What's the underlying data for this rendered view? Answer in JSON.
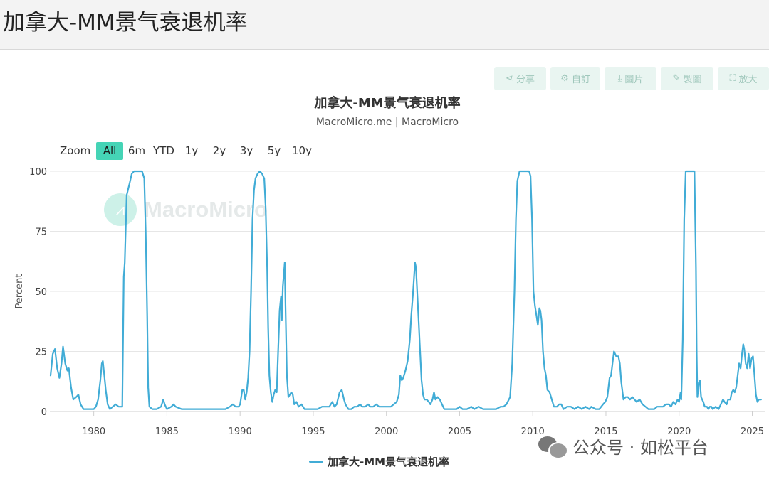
{
  "page": {
    "title": "加拿大-MM景气衰退机率"
  },
  "toolbar": {
    "buttons": [
      {
        "label": "分享",
        "icon": "share-icon",
        "glyph": "⋖"
      },
      {
        "label": "自訂",
        "icon": "gear-icon",
        "glyph": "⚙"
      },
      {
        "label": "圖片",
        "icon": "download-icon",
        "glyph": "⤓"
      },
      {
        "label": "製圖",
        "icon": "pencil-icon",
        "glyph": "✎"
      },
      {
        "label": "放大",
        "icon": "expand-icon",
        "glyph": "⛶"
      }
    ]
  },
  "zoom": {
    "label": "Zoom",
    "options": [
      "All",
      "6m",
      "YTD",
      "1y",
      "2y",
      "3y",
      "5y",
      "10y"
    ],
    "selected": "All"
  },
  "watermark": {
    "text": "MacroMicro"
  },
  "wechat": {
    "text": "公众号 · 如松平台"
  },
  "colors": {
    "series": "#41acd6",
    "accent": "#45d4b6",
    "grid": "#e6e6e6"
  },
  "chart_data": {
    "type": "line",
    "title": "加拿大-MM景气衰退机率",
    "subtitle": "MacroMicro.me | MacroMicro",
    "xlabel": "",
    "ylabel": "Percent",
    "xlim": [
      1977.0,
      2025.9
    ],
    "ylim": [
      0,
      100
    ],
    "yticks": [
      0,
      25,
      50,
      75,
      100
    ],
    "xticks": [
      1980,
      1985,
      1990,
      1995,
      2000,
      2005,
      2010,
      2015,
      2020,
      2025
    ],
    "grid": true,
    "legend_position": "bottom",
    "series": [
      {
        "name": "加拿大-MM景气衰退机率",
        "color": "#41acd6",
        "points": [
          [
            1977.05,
            15
          ],
          [
            1977.2,
            24
          ],
          [
            1977.35,
            26
          ],
          [
            1977.5,
            18
          ],
          [
            1977.65,
            14
          ],
          [
            1977.8,
            20
          ],
          [
            1977.9,
            27
          ],
          [
            1978.05,
            20
          ],
          [
            1978.2,
            17
          ],
          [
            1978.3,
            18
          ],
          [
            1978.45,
            10
          ],
          [
            1978.6,
            5
          ],
          [
            1978.8,
            6
          ],
          [
            1978.95,
            7
          ],
          [
            1979.1,
            3
          ],
          [
            1979.3,
            1
          ],
          [
            1979.7,
            1
          ],
          [
            1980.0,
            1
          ],
          [
            1980.15,
            2
          ],
          [
            1980.3,
            5
          ],
          [
            1980.45,
            13
          ],
          [
            1980.55,
            20
          ],
          [
            1980.62,
            21
          ],
          [
            1980.72,
            15
          ],
          [
            1980.82,
            9
          ],
          [
            1980.95,
            3
          ],
          [
            1981.1,
            1
          ],
          [
            1981.3,
            2
          ],
          [
            1981.5,
            3
          ],
          [
            1981.7,
            2
          ],
          [
            1981.85,
            2
          ],
          [
            1981.95,
            2
          ],
          [
            1982.05,
            56
          ],
          [
            1982.12,
            62
          ],
          [
            1982.25,
            90
          ],
          [
            1982.45,
            95
          ],
          [
            1982.6,
            99
          ],
          [
            1982.75,
            100
          ],
          [
            1983.0,
            100
          ],
          [
            1983.3,
            100
          ],
          [
            1983.45,
            97
          ],
          [
            1983.55,
            75
          ],
          [
            1983.65,
            40
          ],
          [
            1983.72,
            10
          ],
          [
            1983.8,
            2
          ],
          [
            1984.0,
            1
          ],
          [
            1984.3,
            1
          ],
          [
            1984.6,
            2
          ],
          [
            1984.75,
            5
          ],
          [
            1984.85,
            3
          ],
          [
            1985.0,
            1
          ],
          [
            1985.3,
            2
          ],
          [
            1985.45,
            3
          ],
          [
            1985.6,
            2
          ],
          [
            1986.0,
            1
          ],
          [
            1986.5,
            1
          ],
          [
            1987.0,
            1
          ],
          [
            1987.5,
            1
          ],
          [
            1988.0,
            1
          ],
          [
            1988.5,
            1
          ],
          [
            1989.0,
            1
          ],
          [
            1989.3,
            2
          ],
          [
            1989.5,
            3
          ],
          [
            1989.7,
            2
          ],
          [
            1989.9,
            2
          ],
          [
            1990.0,
            3
          ],
          [
            1990.15,
            9
          ],
          [
            1990.25,
            9
          ],
          [
            1990.35,
            5
          ],
          [
            1990.45,
            8
          ],
          [
            1990.55,
            14
          ],
          [
            1990.65,
            25
          ],
          [
            1990.75,
            50
          ],
          [
            1990.85,
            80
          ],
          [
            1990.95,
            92
          ],
          [
            1991.05,
            97
          ],
          [
            1991.2,
            99
          ],
          [
            1991.35,
            100
          ],
          [
            1991.5,
            99
          ],
          [
            1991.65,
            97
          ],
          [
            1991.75,
            85
          ],
          [
            1991.85,
            60
          ],
          [
            1991.92,
            35
          ],
          [
            1992.0,
            15
          ],
          [
            1992.1,
            8
          ],
          [
            1992.2,
            4
          ],
          [
            1992.3,
            7
          ],
          [
            1992.4,
            9
          ],
          [
            1992.5,
            8
          ],
          [
            1992.6,
            25
          ],
          [
            1992.7,
            42
          ],
          [
            1992.8,
            48
          ],
          [
            1992.85,
            38
          ],
          [
            1992.92,
            52
          ],
          [
            1993.0,
            58
          ],
          [
            1993.05,
            62
          ],
          [
            1993.1,
            45
          ],
          [
            1993.2,
            15
          ],
          [
            1993.3,
            6
          ],
          [
            1993.4,
            7
          ],
          [
            1993.5,
            8
          ],
          [
            1993.6,
            7
          ],
          [
            1993.7,
            3
          ],
          [
            1993.85,
            4
          ],
          [
            1994.0,
            2
          ],
          [
            1994.2,
            3
          ],
          [
            1994.4,
            1
          ],
          [
            1994.7,
            1
          ],
          [
            1995.0,
            1
          ],
          [
            1995.3,
            1
          ],
          [
            1995.6,
            2
          ],
          [
            1995.9,
            2
          ],
          [
            1996.1,
            2
          ],
          [
            1996.3,
            4
          ],
          [
            1996.45,
            2
          ],
          [
            1996.6,
            3
          ],
          [
            1996.8,
            8
          ],
          [
            1996.95,
            9
          ],
          [
            1997.1,
            5
          ],
          [
            1997.2,
            3
          ],
          [
            1997.4,
            1
          ],
          [
            1997.6,
            1
          ],
          [
            1997.8,
            2
          ],
          [
            1998.0,
            2
          ],
          [
            1998.2,
            3
          ],
          [
            1998.35,
            2
          ],
          [
            1998.55,
            2
          ],
          [
            1998.75,
            3
          ],
          [
            1998.9,
            2
          ],
          [
            1999.1,
            2
          ],
          [
            1999.3,
            3
          ],
          [
            1999.5,
            2
          ],
          [
            1999.7,
            2
          ],
          [
            1999.9,
            2
          ],
          [
            2000.1,
            2
          ],
          [
            2000.3,
            2
          ],
          [
            2000.5,
            3
          ],
          [
            2000.7,
            4
          ],
          [
            2000.85,
            7
          ],
          [
            2000.95,
            15
          ],
          [
            2001.05,
            13
          ],
          [
            2001.15,
            14
          ],
          [
            2001.3,
            17
          ],
          [
            2001.45,
            21
          ],
          [
            2001.6,
            30
          ],
          [
            2001.7,
            40
          ],
          [
            2001.8,
            48
          ],
          [
            2001.88,
            55
          ],
          [
            2001.95,
            62
          ],
          [
            2002.02,
            60
          ],
          [
            2002.1,
            50
          ],
          [
            2002.2,
            38
          ],
          [
            2002.3,
            25
          ],
          [
            2002.4,
            13
          ],
          [
            2002.5,
            7
          ],
          [
            2002.6,
            5
          ],
          [
            2002.75,
            5
          ],
          [
            2002.9,
            4
          ],
          [
            2003.0,
            3
          ],
          [
            2003.15,
            5
          ],
          [
            2003.25,
            8
          ],
          [
            2003.35,
            5
          ],
          [
            2003.5,
            6
          ],
          [
            2003.65,
            5
          ],
          [
            2003.8,
            3
          ],
          [
            2003.95,
            1
          ],
          [
            2004.2,
            1
          ],
          [
            2004.5,
            1
          ],
          [
            2004.8,
            1
          ],
          [
            2005.0,
            2
          ],
          [
            2005.2,
            1
          ],
          [
            2005.5,
            1
          ],
          [
            2005.8,
            2
          ],
          [
            2006.0,
            1
          ],
          [
            2006.3,
            2
          ],
          [
            2006.6,
            1
          ],
          [
            2006.9,
            1
          ],
          [
            2007.2,
            1
          ],
          [
            2007.5,
            1
          ],
          [
            2007.8,
            2
          ],
          [
            2008.0,
            2
          ],
          [
            2008.2,
            3
          ],
          [
            2008.45,
            6
          ],
          [
            2008.6,
            20
          ],
          [
            2008.75,
            50
          ],
          [
            2008.85,
            80
          ],
          [
            2008.95,
            96
          ],
          [
            2009.1,
            100
          ],
          [
            2009.3,
            100
          ],
          [
            2009.6,
            100
          ],
          [
            2009.75,
            100
          ],
          [
            2009.85,
            98
          ],
          [
            2009.95,
            80
          ],
          [
            2010.05,
            50
          ],
          [
            2010.15,
            44
          ],
          [
            2010.25,
            40
          ],
          [
            2010.35,
            36
          ],
          [
            2010.45,
            43
          ],
          [
            2010.52,
            42
          ],
          [
            2010.6,
            38
          ],
          [
            2010.7,
            25
          ],
          [
            2010.8,
            18
          ],
          [
            2010.9,
            15
          ],
          [
            2011.0,
            9
          ],
          [
            2011.15,
            8
          ],
          [
            2011.3,
            5
          ],
          [
            2011.45,
            2
          ],
          [
            2011.65,
            2
          ],
          [
            2011.8,
            3
          ],
          [
            2011.95,
            3
          ],
          [
            2012.1,
            1
          ],
          [
            2012.35,
            2
          ],
          [
            2012.6,
            2
          ],
          [
            2012.85,
            1
          ],
          [
            2013.1,
            2
          ],
          [
            2013.35,
            1
          ],
          [
            2013.6,
            2
          ],
          [
            2013.85,
            1
          ],
          [
            2014.0,
            2
          ],
          [
            2014.3,
            1
          ],
          [
            2014.55,
            1
          ],
          [
            2014.8,
            3
          ],
          [
            2014.95,
            4
          ],
          [
            2015.1,
            6
          ],
          [
            2015.25,
            14
          ],
          [
            2015.35,
            15
          ],
          [
            2015.45,
            20
          ],
          [
            2015.55,
            25
          ],
          [
            2015.7,
            23
          ],
          [
            2015.85,
            23
          ],
          [
            2015.95,
            20
          ],
          [
            2016.05,
            12
          ],
          [
            2016.2,
            5
          ],
          [
            2016.35,
            6
          ],
          [
            2016.5,
            6
          ],
          [
            2016.65,
            5
          ],
          [
            2016.8,
            6
          ],
          [
            2016.95,
            5
          ],
          [
            2017.1,
            4
          ],
          [
            2017.3,
            5
          ],
          [
            2017.5,
            3
          ],
          [
            2017.7,
            2
          ],
          [
            2017.9,
            1
          ],
          [
            2018.1,
            1
          ],
          [
            2018.3,
            1
          ],
          [
            2018.5,
            2
          ],
          [
            2018.7,
            2
          ],
          [
            2018.9,
            2
          ],
          [
            2019.1,
            3
          ],
          [
            2019.3,
            3
          ],
          [
            2019.45,
            2
          ],
          [
            2019.6,
            4
          ],
          [
            2019.75,
            3
          ],
          [
            2019.9,
            5
          ],
          [
            2020.0,
            4
          ],
          [
            2020.1,
            8
          ],
          [
            2020.15,
            5
          ],
          [
            2020.25,
            30
          ],
          [
            2020.35,
            80
          ],
          [
            2020.45,
            100
          ],
          [
            2020.65,
            100
          ],
          [
            2020.9,
            100
          ],
          [
            2021.05,
            100
          ],
          [
            2021.15,
            60
          ],
          [
            2021.2,
            25
          ],
          [
            2021.25,
            6
          ],
          [
            2021.35,
            12
          ],
          [
            2021.42,
            13
          ],
          [
            2021.5,
            6
          ],
          [
            2021.65,
            4
          ],
          [
            2021.75,
            2
          ],
          [
            2021.9,
            2
          ],
          [
            2022.0,
            1
          ],
          [
            2022.1,
            2
          ],
          [
            2022.2,
            2
          ],
          [
            2022.3,
            1
          ],
          [
            2022.5,
            2
          ],
          [
            2022.7,
            1
          ],
          [
            2022.85,
            3
          ],
          [
            2023.0,
            5
          ],
          [
            2023.1,
            4
          ],
          [
            2023.25,
            3
          ],
          [
            2023.35,
            5
          ],
          [
            2023.5,
            5
          ],
          [
            2023.6,
            8
          ],
          [
            2023.7,
            9
          ],
          [
            2023.8,
            8
          ],
          [
            2023.9,
            10
          ],
          [
            2024.0,
            15
          ],
          [
            2024.1,
            20
          ],
          [
            2024.2,
            18
          ],
          [
            2024.3,
            24
          ],
          [
            2024.38,
            28
          ],
          [
            2024.45,
            26
          ],
          [
            2024.55,
            20
          ],
          [
            2024.65,
            18
          ],
          [
            2024.75,
            24
          ],
          [
            2024.85,
            18
          ],
          [
            2024.95,
            22
          ],
          [
            2025.05,
            23
          ],
          [
            2025.15,
            15
          ],
          [
            2025.25,
            7
          ],
          [
            2025.35,
            4
          ],
          [
            2025.45,
            5
          ],
          [
            2025.6,
            5
          ]
        ]
      }
    ]
  }
}
